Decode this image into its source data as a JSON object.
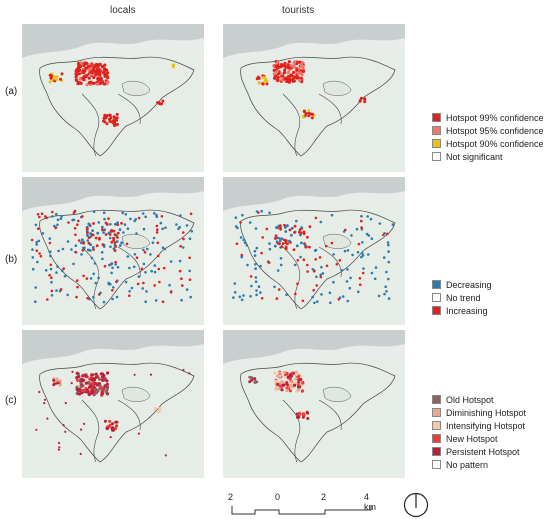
{
  "columns": {
    "left": "locals",
    "right": "tourists"
  },
  "rows": [
    "(a)",
    "(b)",
    "(c)"
  ],
  "legends": {
    "a": [
      {
        "label": "Hotspot 99% confidence",
        "color": "#e0211c"
      },
      {
        "label": "Hotspot 95% confidence",
        "color": "#f0786f"
      },
      {
        "label": "Hotspot 90% confidence",
        "color": "#e8c21a"
      },
      {
        "label": "Not significant",
        "color": "#ffffff"
      }
    ],
    "b": [
      {
        "label": "Decreasing",
        "color": "#2a7bb0"
      },
      {
        "label": "No trend",
        "color": "#ffffff"
      },
      {
        "label": "Increasing",
        "color": "#e0211c"
      }
    ],
    "c": [
      {
        "label": "Old Hotspot",
        "color": "#8c6262"
      },
      {
        "label": "Diminishing Hotspot",
        "color": "#e8a88f"
      },
      {
        "label": "Intensifying Hotspot",
        "color": "#f6c9a8"
      },
      {
        "label": "New Hotspot",
        "color": "#ee3b36"
      },
      {
        "label": "Persistent Hotspot",
        "color": "#b8213a"
      },
      {
        "label": "No pattern",
        "color": "#ffffff"
      }
    ]
  },
  "scale": {
    "ticks": [
      "2",
      "0",
      "2",
      "4 km"
    ]
  }
}
